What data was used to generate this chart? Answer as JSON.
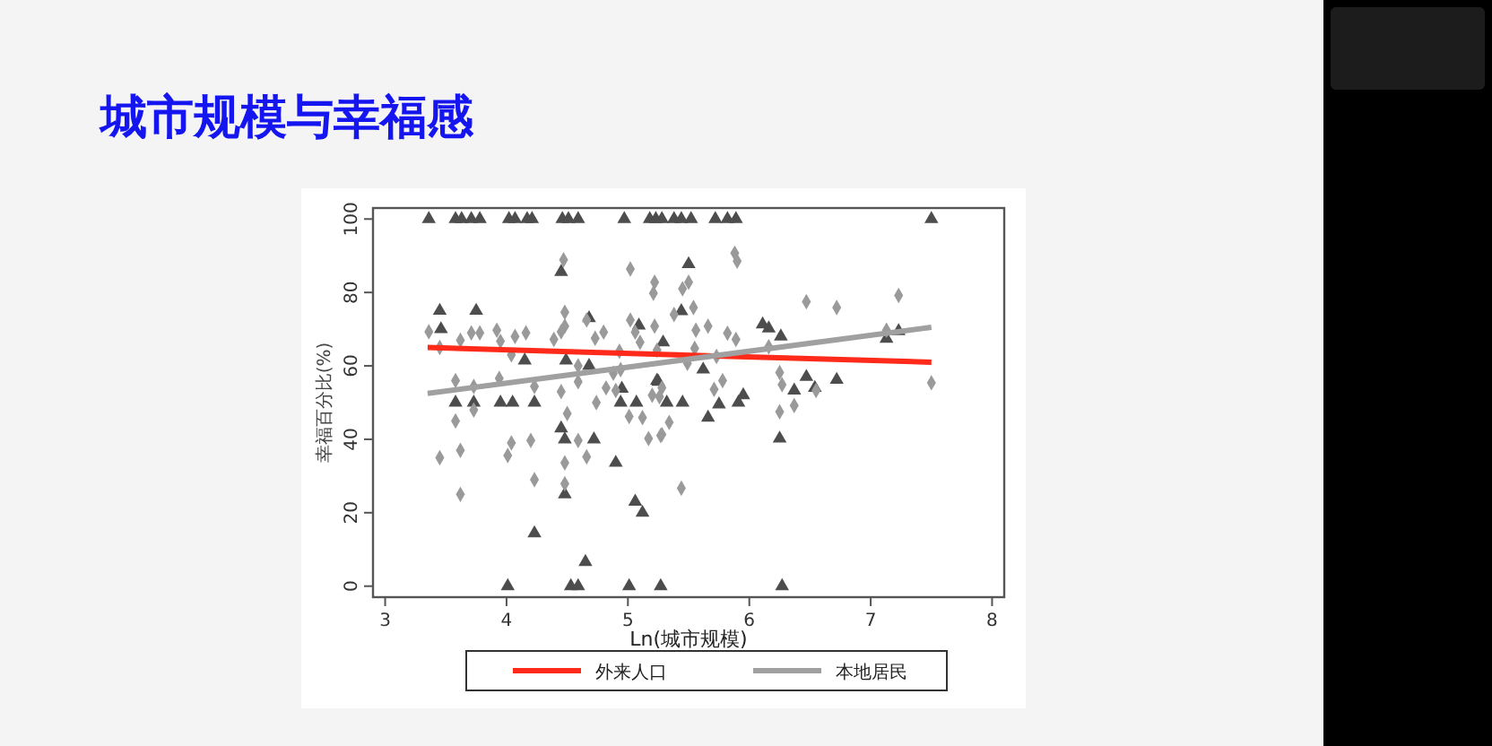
{
  "chart_data": {
    "type": "scatter",
    "title": "城市规模与幸福感",
    "xlabel": "Ln(城市规模)",
    "ylabel": "幸福百分比(%)",
    "xlim": [
      2.9,
      8.1
    ],
    "xticks": [
      3,
      4,
      5,
      6,
      7,
      8
    ],
    "ylim": [
      -3,
      103
    ],
    "yticks": [
      0,
      20,
      40,
      60,
      80,
      100
    ],
    "grid": false,
    "legend": "bottom",
    "series": [
      {
        "marker": "triangle",
        "color": "#4d4d4d",
        "x": [
          3.36,
          3.58,
          3.63,
          3.71,
          3.78,
          4.02,
          4.07,
          4.17,
          4.21,
          4.46,
          4.51,
          4.59,
          4.97,
          5.18,
          5.23,
          5.28,
          5.38,
          5.44,
          5.52,
          5.72,
          5.82,
          5.89,
          7.5,
          4.01,
          4.53,
          4.59,
          5.01,
          5.27,
          6.27,
          4.65,
          3.45,
          3.46,
          3.75,
          3.58,
          3.73,
          3.95,
          4.05,
          4.23,
          4.15,
          4.45,
          4.49,
          4.45,
          4.48,
          4.72,
          4.48,
          4.23,
          4.68,
          4.68,
          4.9,
          4.94,
          5.07,
          5.06,
          5.12,
          5.09,
          5.24,
          4.95,
          5.5,
          5.44,
          5.29,
          5.25,
          5.32,
          5.45,
          5.62,
          5.66,
          5.75,
          5.91,
          5.95,
          6.11,
          6.16,
          6.26,
          6.25,
          6.37,
          6.47,
          6.54,
          6.72,
          7.13,
          7.23
        ],
        "values": [
          100,
          100,
          100,
          100,
          100,
          100,
          100,
          100,
          100,
          100,
          100,
          100,
          100,
          100,
          100,
          100,
          100,
          100,
          100,
          100,
          100,
          100,
          100,
          0,
          0,
          0,
          0,
          0,
          0,
          6.6,
          75,
          70,
          75,
          50,
          50,
          50,
          50,
          50,
          61.5,
          85.6,
          61.5,
          43,
          40,
          40,
          25,
          14.4,
          73,
          60,
          33.6,
          50,
          50,
          23,
          20,
          71,
          56,
          53.8,
          87.7,
          74.9,
          66.4,
          55.7,
          50,
          50,
          59,
          45.9,
          49.5,
          50,
          52,
          71.3,
          70.2,
          68,
          40.2,
          53.3,
          57,
          54,
          56.2,
          67.4,
          69.5
        ]
      },
      {
        "marker": "diamond",
        "color": "#9a9a9a",
        "x": [
          3.36,
          3.45,
          3.45,
          3.58,
          3.58,
          3.62,
          3.62,
          3.62,
          3.71,
          3.78,
          3.73,
          3.73,
          3.92,
          3.94,
          3.95,
          4.04,
          4.04,
          4.01,
          4.07,
          4.16,
          4.2,
          4.23,
          4.23,
          4.39,
          4.45,
          4.45,
          4.47,
          4.48,
          4.48,
          4.5,
          4.48,
          4.48,
          4.59,
          4.59,
          4.59,
          4.66,
          4.66,
          4.73,
          4.74,
          4.8,
          4.82,
          4.88,
          4.9,
          4.93,
          4.94,
          5.01,
          5.02,
          5.02,
          5.06,
          5.1,
          5.12,
          5.17,
          5.22,
          5.21,
          5.24,
          5.2,
          5.27,
          5.22,
          5.5,
          5.45,
          5.38,
          5.54,
          5.56,
          5.66,
          5.55,
          5.49,
          5.28,
          5.26,
          5.34,
          5.28,
          5.44,
          5.71,
          5.78,
          5.73,
          5.82,
          5.89,
          5.88,
          5.9,
          6.16,
          6.25,
          6.27,
          6.25,
          6.37,
          6.47,
          6.55,
          6.72,
          7.13,
          7.23,
          7.5
        ],
        "values": [
          69.3,
          65,
          35,
          56,
          45,
          67,
          37,
          25,
          69,
          69,
          54.4,
          48,
          69.7,
          56.6,
          66.7,
          63,
          39,
          35.6,
          68,
          69,
          39.7,
          54.4,
          29,
          67.2,
          69.3,
          53,
          88.9,
          74.6,
          70.8,
          47,
          33.6,
          27.9,
          55.7,
          39.7,
          60,
          72.5,
          35.2,
          67.5,
          50,
          69.2,
          54,
          58,
          53.3,
          64,
          59,
          46.2,
          86.4,
          72.5,
          69.2,
          66.4,
          45.9,
          40.2,
          82.8,
          79.8,
          64.3,
          52,
          41,
          70.8,
          82.8,
          81,
          74,
          75.9,
          69.7,
          70.8,
          64.8,
          60.7,
          54,
          51.6,
          44.6,
          41.3,
          26.7,
          53.6,
          56,
          62.6,
          68.9,
          67.2,
          90.7,
          88.5,
          65.2,
          58.2,
          54.9,
          47.5,
          49.2,
          77.5,
          53.3,
          75.9,
          69.7,
          79.2,
          55.4
        ]
      },
      {
        "type": "line",
        "name": "外来人口",
        "color": "#ff2a1a",
        "x": [
          3.35,
          7.5
        ],
        "values": [
          65,
          61
        ]
      },
      {
        "type": "line",
        "name": "本地居民",
        "color": "#a0a0a0",
        "x": [
          3.35,
          7.5
        ],
        "values": [
          52.5,
          70.5
        ]
      }
    ]
  }
}
